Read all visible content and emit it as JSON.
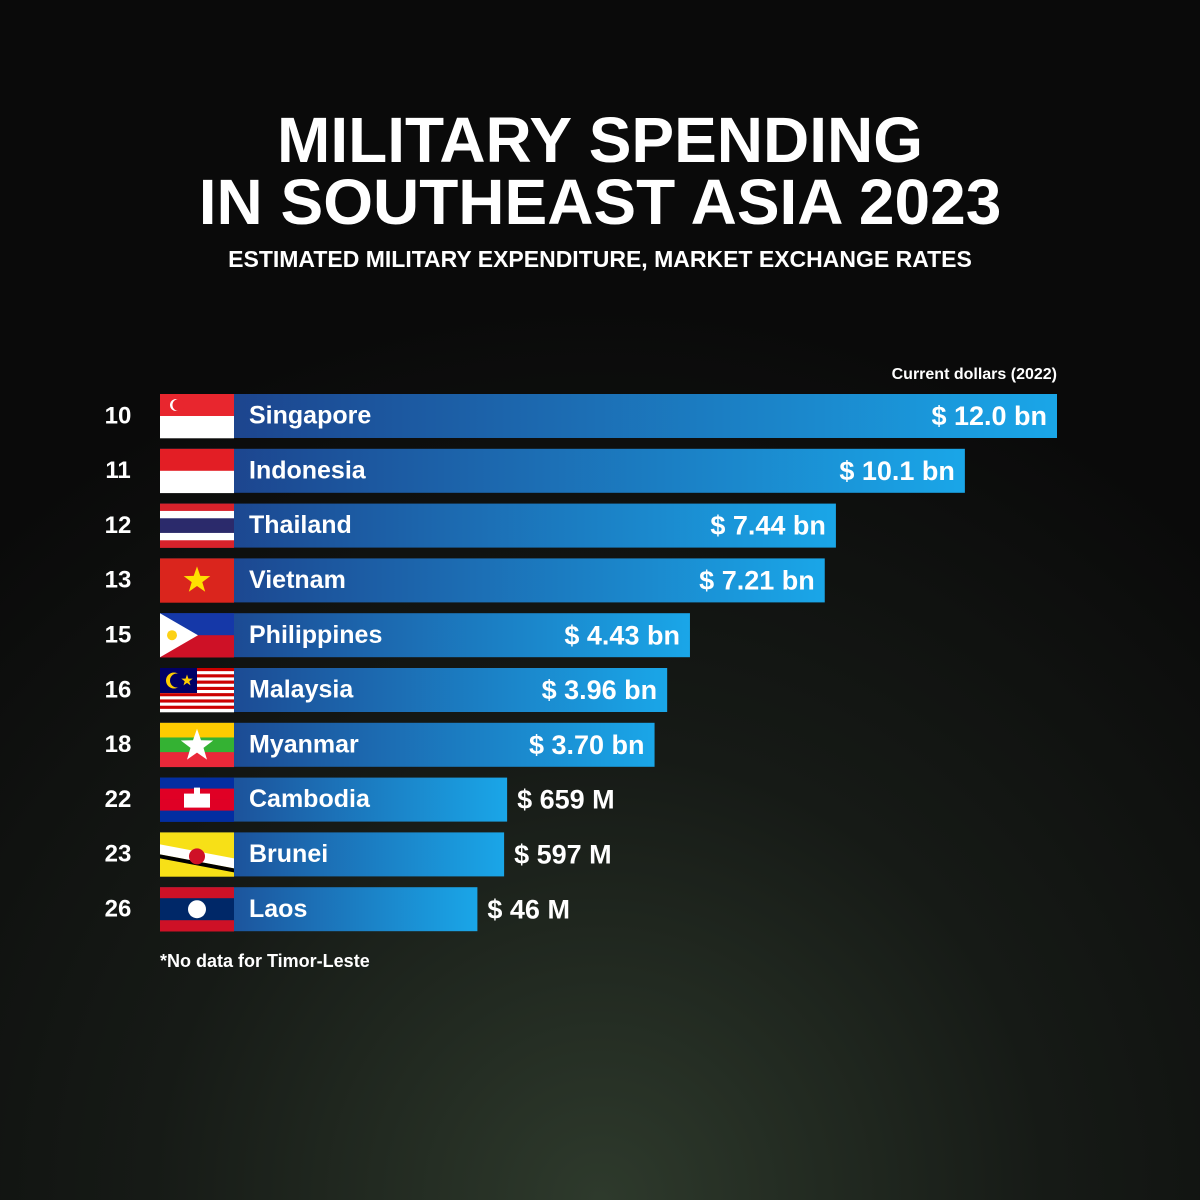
{
  "chart_data": {
    "type": "bar",
    "orientation": "horizontal",
    "title": [
      "MILITARY SPENDING",
      "IN SOUTHEAST ASIA 2023"
    ],
    "subtitle": "ESTIMATED MILITARY EXPENDITURE, MARKET EXCHANGE RATES",
    "unit_label": "Current dollars (2022)",
    "note": "*No data for Timor-Leste",
    "ranks": [
      10,
      11,
      12,
      13,
      15,
      16,
      18,
      22,
      23,
      26
    ],
    "categories": [
      "Singapore",
      "Indonesia",
      "Thailand",
      "Vietnam",
      "Philippines",
      "Malaysia",
      "Myanmar",
      "Cambodia",
      "Brunei",
      "Laos"
    ],
    "values": [
      12.0,
      10.1,
      7.44,
      7.21,
      4.43,
      3.96,
      3.7,
      0.659,
      0.597,
      0.046
    ],
    "value_labels": [
      "$ 12.0 bn",
      "$ 10.1 bn",
      "$ 7.44 bn",
      "$ 7.21 bn",
      "$ 4.43 bn",
      "$ 3.96 bn",
      "$ 3.70 bn",
      "$ 659 M",
      "$ 597 M",
      "$ 46 M"
    ],
    "xlim": [
      -6.5,
      12.0
    ],
    "color": [
      "#1d3c86",
      "#1aa6e8"
    ]
  }
}
